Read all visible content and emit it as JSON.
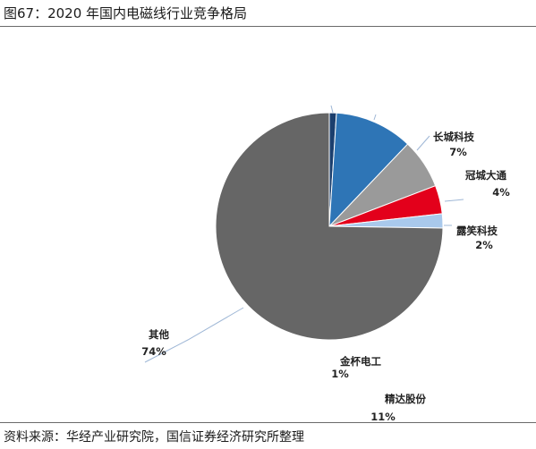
{
  "figure": {
    "title": "图67：2020 年国内电磁线行业竞争格局",
    "source": "资料来源：华经产业研究院，国信证券经济研究所整理"
  },
  "chart_data": {
    "type": "pie",
    "title": "",
    "slices": [
      {
        "name": "金杯电工",
        "value": 1,
        "label": "1%",
        "color": "#1b3f6e"
      },
      {
        "name": "精达股份",
        "value": 11,
        "label": "11%",
        "color": "#2e75b6"
      },
      {
        "name": "长城科技",
        "value": 7,
        "label": "7%",
        "color": "#9a9a9a"
      },
      {
        "name": "冠城大通",
        "value": 4,
        "label": "4%",
        "color": "#e3001b"
      },
      {
        "name": "露笑科技",
        "value": 2,
        "label": "2%",
        "color": "#a9c9ec"
      },
      {
        "name": "其他",
        "value": 74,
        "label": "74%",
        "color": "#666666"
      }
    ],
    "start_angle_deg": 0,
    "direction": "clockwise",
    "legend": "none"
  }
}
